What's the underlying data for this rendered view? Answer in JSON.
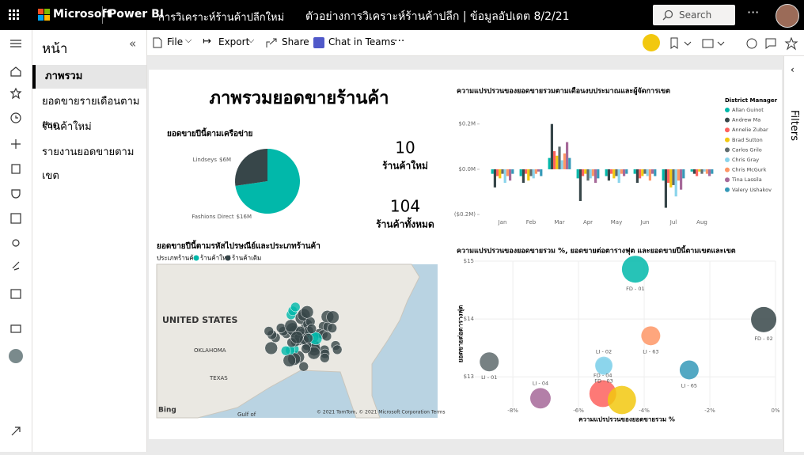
{
  "topbar": {
    "brand": "Microsoft",
    "product": "Power BI",
    "workspace": "การวิเคราะห์ร้านค้าปลีกใหม่",
    "report_title": "ตัวอย่างการวิเคราะห์ร้านค้าปลีก | ข้อมูลอัปเดต 8/2/21",
    "search": "Search"
  },
  "toolbar": {
    "items": [
      "File",
      "Export",
      "Share",
      "Chat in Teams"
    ]
  },
  "pages_pane": {
    "title": "หน้า",
    "pages": [
      "ภาพรวม",
      "ยอดขายรายเดือนตามเขต",
      "ร้านค้าใหม่",
      "รายงานยอดขายตามเขต"
    ]
  },
  "filters": "Filters",
  "report": {
    "title": "ภาพรวมยอดขายร้านค้า"
  },
  "cards": [
    {
      "value": 10,
      "label": "ร้านค้าใหม่"
    },
    {
      "value": 104,
      "label": "ร้านค้าทั้งหมด"
    }
  ],
  "map": {
    "title": "ยอดขายปีนี้ตามรหัสไปรษณีย์และประเภทร้านค้า",
    "legend_title": "ประเภทร้านค้า",
    "legend": [
      "ร้านค้าใหม่",
      "ร้านค้าเดิม"
    ],
    "legend_colors": [
      "#01b8aa",
      "#374649"
    ],
    "labels": [
      "UNITED STATES",
      "OKLAHOMA",
      "TEXAS",
      "Gulf of",
      "Bing",
      "© 2021 TomTom, © 2021 Microsoft Corporation Terms"
    ]
  },
  "chart_data": [
    {
      "type": "pie",
      "title": "ยอดขายปีนี้ตามเครือข่าย",
      "categories": [
        "Lindseys",
        "Fashions Direct"
      ],
      "values": [
        6,
        16
      ],
      "value_labels": [
        "$6M",
        "$16M"
      ],
      "colors": [
        "#374649",
        "#01b8aa"
      ]
    },
    {
      "type": "bar",
      "title": "ความแปรปรวนของยอดขายรวมตามเดือนงบประมาณและผู้จัดการเขต",
      "legend_title": "District Manager",
      "categories": [
        "Jan",
        "Feb",
        "Mar",
        "Apr",
        "May",
        "Jun",
        "Jul",
        "Aug"
      ],
      "series": [
        {
          "name": "Allan Guinot",
          "color": "#01b8aa",
          "values": [
            -0.02,
            -0.03,
            0.05,
            -0.04,
            -0.03,
            -0.02,
            -0.05,
            -0.01
          ]
        },
        {
          "name": "Andrew Ma",
          "color": "#374649",
          "values": [
            -0.08,
            -0.06,
            0.2,
            -0.14,
            -0.05,
            -0.06,
            -0.17,
            -0.02
          ]
        },
        {
          "name": "Annelie Zubar",
          "color": "#fd625e",
          "values": [
            -0.03,
            -0.02,
            0.08,
            -0.03,
            -0.02,
            -0.04,
            -0.06,
            -0.03
          ]
        },
        {
          "name": "Brad Sutton",
          "color": "#f2c80f",
          "values": [
            -0.04,
            -0.05,
            0.06,
            -0.02,
            -0.04,
            -0.03,
            -0.08,
            -0.01
          ]
        },
        {
          "name": "Carlos Grilo",
          "color": "#5f6b6d",
          "values": [
            -0.02,
            -0.03,
            0.1,
            -0.05,
            -0.03,
            -0.02,
            -0.07,
            -0.02
          ]
        },
        {
          "name": "Chris Gray",
          "color": "#8ad4eb",
          "values": [
            -0.06,
            -0.04,
            0.04,
            -0.04,
            -0.06,
            -0.03,
            -0.12,
            -0.01
          ]
        },
        {
          "name": "Chris McGurk",
          "color": "#fe9666",
          "values": [
            -0.03,
            -0.02,
            0.07,
            -0.03,
            -0.02,
            -0.05,
            -0.05,
            -0.02
          ]
        },
        {
          "name": "Tina Lassila",
          "color": "#a66999",
          "values": [
            -0.05,
            -0.01,
            0.12,
            -0.06,
            -0.03,
            -0.02,
            -0.09,
            -0.03
          ]
        },
        {
          "name": "Valery Ushakov",
          "color": "#3599b8",
          "values": [
            -0.02,
            -0.03,
            0.05,
            -0.04,
            -0.02,
            -0.03,
            -0.04,
            -0.02
          ]
        }
      ],
      "ylim": [
        -0.21,
        0.22
      ],
      "yticks": [
        {
          "value": 0.2,
          "label": "$0.2M"
        },
        {
          "value": 0,
          "label": "$0.0M"
        },
        {
          "value": -0.2,
          "label": "($0.2M)"
        }
      ]
    },
    {
      "type": "scatter",
      "title": "ความแปรปรวนของยอดขายรวม %, ยอดขายต่อตารางฟุต และยอดขายปีนี้ตามเขตและเขต",
      "x_label": "ความแปรปรวนของยอดขายรวม %",
      "y_label": "ยอดขายต่อตารางฟุต",
      "categories": [
        "FD - 01",
        "FD - 02",
        "LI - 63",
        "LI - 02",
        "FD - 03",
        "LI - 01",
        "LI - 04",
        "FD - 04",
        null,
        "LI - 65"
      ],
      "x": [
        -4.27,
        -0.36,
        -3.8,
        -5.23,
        -5.23,
        -8.72,
        -7.16,
        -5.26,
        -4.68,
        -2.63
      ],
      "values": [
        14.86,
        13.99,
        13.71,
        13.2,
        13.18,
        13.26,
        12.63,
        12.71,
        12.6,
        13.12
      ],
      "sizes": [
        18,
        16,
        9,
        7.5,
        7,
        9,
        10.5,
        18,
        20,
        9
      ],
      "colors": [
        "#01b8aa",
        "#374649",
        "#fe9666",
        "#8ad4eb",
        "#8ad4eb",
        "#5f6b6d",
        "#a66999",
        "#fd625e",
        "#f2c80f",
        "#3599b8"
      ],
      "xlim": [
        -9.16,
        0
      ],
      "ylim": [
        12.47,
        15
      ],
      "xticks": [
        {
          "value": -8,
          "label": "-8%"
        },
        {
          "value": -6,
          "label": "-6%"
        },
        {
          "value": -4,
          "label": "-4%"
        },
        {
          "value": -2,
          "label": "-2%"
        },
        {
          "value": 0,
          "label": "0%"
        }
      ],
      "yticks": [
        {
          "value": 13,
          "label": "$13"
        },
        {
          "value": 14,
          "label": "$14"
        },
        {
          "value": 15,
          "label": "$15"
        }
      ],
      "grid": true
    }
  ]
}
